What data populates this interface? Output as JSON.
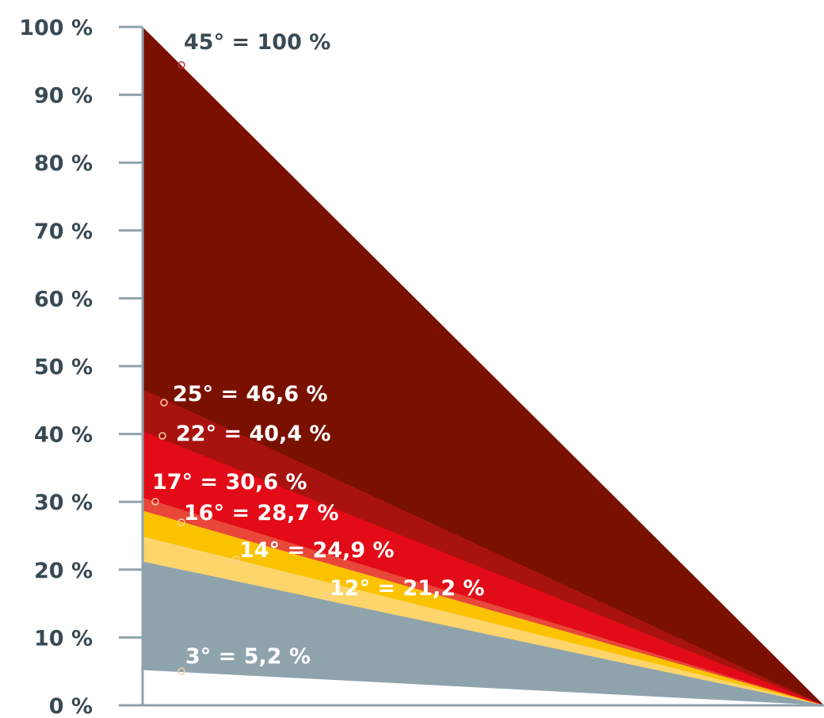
{
  "chart_data": {
    "type": "area",
    "title": "",
    "xlabel": "",
    "ylabel": "",
    "ylim": [
      0,
      100
    ],
    "y_ticks": [
      "0 %",
      "10 %",
      "20 %",
      "30 %",
      "40 %",
      "50 %",
      "60 %",
      "70 %",
      "80 %",
      "90 %",
      "100 %"
    ],
    "y_tick_values": [
      0,
      10,
      20,
      30,
      40,
      50,
      60,
      70,
      80,
      90,
      100
    ],
    "grid": false,
    "series": [
      {
        "name": "45° = 100 %",
        "value": 100,
        "color": "#7a1000",
        "label_color": "#3a4a54"
      },
      {
        "name": "25° = 46,6 %",
        "value": 46.6,
        "color": "#a8130f",
        "label_color": "#ffffff"
      },
      {
        "name": "22° = 40,4 %",
        "value": 40.4,
        "color": "#e30b17",
        "label_color": "#ffffff"
      },
      {
        "name": "17° = 30,6 %",
        "value": 30.6,
        "color": "#e8473a",
        "label_color": "#ffffff"
      },
      {
        "name": "16° = 28,7 %",
        "value": 28.7,
        "color": "#fbc200",
        "label_color": "#ffffff"
      },
      {
        "name": "14° = 24,9 %",
        "value": 24.9,
        "color": "#fdd56a",
        "label_color": "#ffffff"
      },
      {
        "name": "12° = 21,2 %",
        "value": 21.2,
        "color": "#8fa3ad",
        "label_color": "#ffffff"
      },
      {
        "name": "3° = 5,2 %",
        "value": 5.2,
        "color": "#ffffff",
        "label_color": "#ffffff"
      }
    ],
    "axis_color": "#8fa3ad"
  }
}
